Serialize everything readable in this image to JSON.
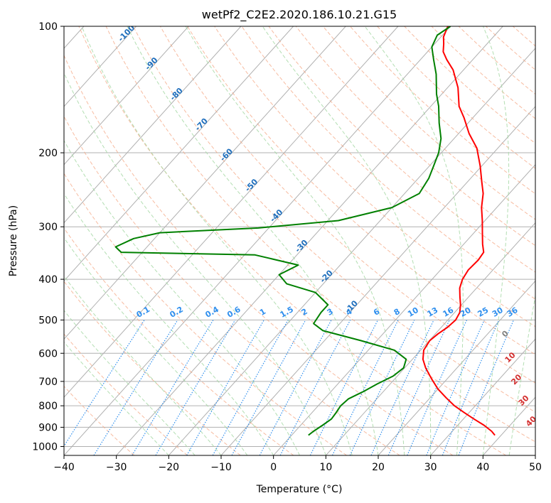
{
  "chart_data": {
    "type": "line",
    "title": "wetPf2_C2E2.2020.186.10.21.G15",
    "xlabel": "Temperature (°C)",
    "ylabel": "Pressure (hPa)",
    "xlim": [
      -40,
      50
    ],
    "ylim": [
      1050,
      100
    ],
    "x_ticks": [
      "−40",
      "−30",
      "−20",
      "−10",
      "0",
      "10",
      "20",
      "30",
      "40",
      "50"
    ],
    "y_ticks": [
      "100",
      "200",
      "300",
      "400",
      "500",
      "600",
      "700",
      "800",
      "900",
      "1000"
    ],
    "isotherm_labels": [
      "-100",
      "-90",
      "-80",
      "-70",
      "-60",
      "-50",
      "-40",
      "-30",
      "-20",
      "-10"
    ],
    "moist_adiabat_labels": [
      "0",
      "10",
      "20",
      "30",
      "40"
    ],
    "mixing_ratio_labels": [
      "0.1",
      "0.2",
      "0.4",
      "0.6",
      "1",
      "1.5",
      "2",
      "3",
      "4",
      "6",
      "8",
      "10",
      "13",
      "16",
      "20",
      "25",
      "30",
      "36"
    ],
    "series": [
      {
        "name": "temperature",
        "color": "#ff0000",
        "points": [
          [
            38.8,
            940
          ],
          [
            37.5,
            920
          ],
          [
            35,
            890
          ],
          [
            32,
            860
          ],
          [
            29,
            830
          ],
          [
            26,
            800
          ],
          [
            23,
            765
          ],
          [
            20,
            730
          ],
          [
            17,
            690
          ],
          [
            14,
            650
          ],
          [
            12,
            620
          ],
          [
            10.6,
            590
          ],
          [
            10.1,
            560
          ],
          [
            10.5,
            540
          ],
          [
            11.2,
            520
          ],
          [
            11.5,
            500
          ],
          [
            11,
            480
          ],
          [
            9.8,
            460
          ],
          [
            8.3,
            440
          ],
          [
            6.8,
            420
          ],
          [
            5.8,
            400
          ],
          [
            5.3,
            380
          ],
          [
            5.5,
            360
          ],
          [
            5.2,
            345
          ],
          [
            3.6,
            330
          ],
          [
            1.6,
            310
          ],
          [
            -0.5,
            290
          ],
          [
            -2.9,
            270
          ],
          [
            -5,
            250
          ],
          [
            -7.2,
            235
          ],
          [
            -10.3,
            215
          ],
          [
            -14,
            195
          ],
          [
            -18,
            180
          ],
          [
            -21.7,
            165
          ],
          [
            -24.6,
            155
          ],
          [
            -28,
            140
          ],
          [
            -32,
            127
          ],
          [
            -35,
            120
          ],
          [
            -37,
            115
          ],
          [
            -38.3,
            110
          ],
          [
            -39.5,
            106
          ],
          [
            -40.5,
            100
          ]
        ]
      },
      {
        "name": "dewpoint",
        "color": "#008000",
        "points": [
          [
            3.2,
            940
          ],
          [
            3.5,
            920
          ],
          [
            4.2,
            890
          ],
          [
            4.8,
            860
          ],
          [
            4.6,
            830
          ],
          [
            4.3,
            800
          ],
          [
            4.6,
            770
          ],
          [
            6.2,
            740
          ],
          [
            7.5,
            710
          ],
          [
            9.2,
            680
          ],
          [
            9.8,
            650
          ],
          [
            8.8,
            620
          ],
          [
            5,
            590
          ],
          [
            -3,
            560
          ],
          [
            -12,
            530
          ],
          [
            -15,
            510
          ],
          [
            -15.5,
            480
          ],
          [
            -15.5,
            460
          ],
          [
            -20,
            430
          ],
          [
            -27,
            410
          ],
          [
            -30,
            390
          ],
          [
            -28,
            370
          ],
          [
            -38,
            350
          ],
          [
            -64,
            345
          ],
          [
            -66,
            335
          ],
          [
            -64,
            320
          ],
          [
            -60,
            310
          ],
          [
            -42,
            302
          ],
          [
            -28,
            290
          ],
          [
            -20,
            270
          ],
          [
            -17.2,
            250
          ],
          [
            -18,
            230
          ],
          [
            -19.2,
            215
          ],
          [
            -20.5,
            200
          ],
          [
            -22.5,
            185
          ],
          [
            -25.5,
            170
          ],
          [
            -28.5,
            155
          ],
          [
            -31,
            145
          ],
          [
            -34.5,
            130
          ],
          [
            -37.5,
            120
          ],
          [
            -40,
            112
          ],
          [
            -41,
            105
          ],
          [
            -40,
            100
          ]
        ]
      }
    ],
    "grid": true,
    "legend": "none"
  },
  "colors": {
    "temperature": "#ff0000",
    "dewpoint": "#008000",
    "isotherm_label": "#1f6fbd",
    "mixing_ratio_label": "#2f8fee",
    "moist_label": "#d43030"
  }
}
